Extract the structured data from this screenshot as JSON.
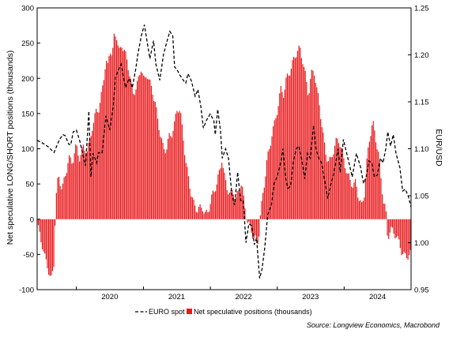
{
  "chart_data": {
    "type": "bar+line",
    "title": "",
    "source": "Source: Longview Economics, Macrobond",
    "left_axis": {
      "label": "Net speculative LONG/SHORT positions (thousands)",
      "ylim": [
        -100,
        300
      ],
      "ticks": [
        -100,
        -50,
        0,
        50,
        100,
        150,
        200,
        250,
        300
      ]
    },
    "right_axis": {
      "label": "EUR/USD",
      "ylim": [
        0.95,
        1.25
      ],
      "ticks": [
        "0.95",
        "1.00",
        "1.05",
        "1.10",
        "1.15",
        "1.20",
        "1.25"
      ]
    },
    "x_axis": {
      "xlim": [
        "2019-06-01",
        "2024-12-31"
      ],
      "year_labels": [
        "2020",
        "2021",
        "2022",
        "2023",
        "2024"
      ]
    },
    "grid": false,
    "legend_position": "bottom",
    "colors": {
      "bars": "#e8191c",
      "line": "#000000"
    },
    "series": [
      {
        "name": "EURO spot",
        "kind": "line",
        "axis": "right",
        "style": "dashed",
        "points": [
          [
            "2019-06-01",
            1.109
          ],
          [
            "2019-07-01",
            1.106
          ],
          [
            "2019-08-01",
            1.102
          ],
          [
            "2019-09-01",
            1.096
          ],
          [
            "2019-10-01",
            1.11
          ],
          [
            "2019-10-20",
            1.115
          ],
          [
            "2019-11-01",
            1.114
          ],
          [
            "2019-11-20",
            1.105
          ],
          [
            "2019-12-01",
            1.104
          ],
          [
            "2019-12-15",
            1.118
          ],
          [
            "2020-01-01",
            1.12
          ],
          [
            "2020-01-20",
            1.108
          ],
          [
            "2020-02-10",
            1.09
          ],
          [
            "2020-02-20",
            1.082
          ],
          [
            "2020-03-09",
            1.14
          ],
          [
            "2020-03-20",
            1.07
          ],
          [
            "2020-04-01",
            1.095
          ],
          [
            "2020-04-20",
            1.085
          ],
          [
            "2020-05-01",
            1.096
          ],
          [
            "2020-05-20",
            1.095
          ],
          [
            "2020-06-10",
            1.135
          ],
          [
            "2020-07-01",
            1.12
          ],
          [
            "2020-07-20",
            1.145
          ],
          [
            "2020-08-01",
            1.176
          ],
          [
            "2020-08-20",
            1.185
          ],
          [
            "2020-09-01",
            1.19
          ],
          [
            "2020-09-25",
            1.165
          ],
          [
            "2020-10-15",
            1.175
          ],
          [
            "2020-11-01",
            1.165
          ],
          [
            "2020-11-20",
            1.185
          ],
          [
            "2020-12-01",
            1.2
          ],
          [
            "2020-12-20",
            1.22
          ],
          [
            "2021-01-06",
            1.232
          ],
          [
            "2021-01-20",
            1.215
          ],
          [
            "2021-02-05",
            1.196
          ],
          [
            "2021-02-25",
            1.215
          ],
          [
            "2021-03-10",
            1.19
          ],
          [
            "2021-03-31",
            1.173
          ],
          [
            "2021-04-20",
            1.2
          ],
          [
            "2021-05-10",
            1.215
          ],
          [
            "2021-05-25",
            1.225
          ],
          [
            "2021-06-10",
            1.22
          ],
          [
            "2021-06-20",
            1.187
          ],
          [
            "2021-07-01",
            1.185
          ],
          [
            "2021-07-20",
            1.178
          ],
          [
            "2021-08-10",
            1.172
          ],
          [
            "2021-08-20",
            1.17
          ],
          [
            "2021-09-01",
            1.18
          ],
          [
            "2021-09-20",
            1.172
          ],
          [
            "2021-10-10",
            1.156
          ],
          [
            "2021-10-25",
            1.163
          ],
          [
            "2021-11-10",
            1.145
          ],
          [
            "2021-11-24",
            1.122
          ],
          [
            "2021-12-10",
            1.13
          ],
          [
            "2021-12-31",
            1.137
          ],
          [
            "2022-01-20",
            1.13
          ],
          [
            "2022-01-28",
            1.115
          ],
          [
            "2022-02-10",
            1.142
          ],
          [
            "2022-02-25",
            1.12
          ],
          [
            "2022-03-07",
            1.09
          ],
          [
            "2022-03-25",
            1.1
          ],
          [
            "2022-04-10",
            1.09
          ],
          [
            "2022-04-28",
            1.052
          ],
          [
            "2022-05-13",
            1.04
          ],
          [
            "2022-05-30",
            1.075
          ],
          [
            "2022-06-15",
            1.045
          ],
          [
            "2022-06-30",
            1.045
          ],
          [
            "2022-07-14",
            1.0
          ],
          [
            "2022-07-30",
            1.02
          ],
          [
            "2022-08-15",
            1.018
          ],
          [
            "2022-08-29",
            0.998
          ],
          [
            "2022-09-10",
            1.005
          ],
          [
            "2022-09-27",
            0.962
          ],
          [
            "2022-10-10",
            0.972
          ],
          [
            "2022-10-25",
            0.995
          ],
          [
            "2022-11-10",
            1.03
          ],
          [
            "2022-11-30",
            1.04
          ],
          [
            "2022-12-15",
            1.063
          ],
          [
            "2022-12-31",
            1.07
          ],
          [
            "2023-01-20",
            1.085
          ],
          [
            "2023-02-01",
            1.1
          ],
          [
            "2023-02-15",
            1.07
          ],
          [
            "2023-02-28",
            1.058
          ],
          [
            "2023-03-15",
            1.06
          ],
          [
            "2023-03-31",
            1.088
          ],
          [
            "2023-04-15",
            1.1
          ],
          [
            "2023-04-28",
            1.103
          ],
          [
            "2023-05-15",
            1.088
          ],
          [
            "2023-05-31",
            1.068
          ],
          [
            "2023-06-15",
            1.095
          ],
          [
            "2023-06-30",
            1.09
          ],
          [
            "2023-07-18",
            1.125
          ],
          [
            "2023-07-31",
            1.1
          ],
          [
            "2023-08-15",
            1.09
          ],
          [
            "2023-08-31",
            1.085
          ],
          [
            "2023-09-15",
            1.068
          ],
          [
            "2023-10-03",
            1.047
          ],
          [
            "2023-10-20",
            1.062
          ],
          [
            "2023-11-05",
            1.073
          ],
          [
            "2023-11-29",
            1.1
          ],
          [
            "2023-12-10",
            1.075
          ],
          [
            "2023-12-28",
            1.11
          ],
          [
            "2024-01-15",
            1.095
          ],
          [
            "2024-01-31",
            1.082
          ],
          [
            "2024-02-14",
            1.07
          ],
          [
            "2024-03-08",
            1.095
          ],
          [
            "2024-03-31",
            1.08
          ],
          [
            "2024-04-16",
            1.063
          ],
          [
            "2024-04-30",
            1.07
          ],
          [
            "2024-05-15",
            1.087
          ],
          [
            "2024-05-31",
            1.085
          ],
          [
            "2024-06-14",
            1.07
          ],
          [
            "2024-06-30",
            1.072
          ],
          [
            "2024-07-17",
            1.09
          ],
          [
            "2024-07-31",
            1.085
          ],
          [
            "2024-08-15",
            1.1
          ],
          [
            "2024-08-26",
            1.118
          ],
          [
            "2024-09-10",
            1.103
          ],
          [
            "2024-09-25",
            1.115
          ],
          [
            "2024-10-10",
            1.095
          ],
          [
            "2024-10-31",
            1.08
          ],
          [
            "2024-11-15",
            1.055
          ],
          [
            "2024-11-29",
            1.057
          ],
          [
            "2024-12-15",
            1.05
          ],
          [
            "2024-12-31",
            1.038
          ]
        ]
      },
      {
        "name": "Net speculative positions (thousands)",
        "kind": "bar",
        "axis": "left",
        "anchors": [
          [
            "2019-06-01",
            -8
          ],
          [
            "2019-06-20",
            -30
          ],
          [
            "2019-07-10",
            -55
          ],
          [
            "2019-07-25",
            -60
          ],
          [
            "2019-08-15",
            -85
          ],
          [
            "2019-09-01",
            -60
          ],
          [
            "2019-09-10",
            20
          ],
          [
            "2019-09-25",
            60
          ],
          [
            "2019-10-15",
            40
          ],
          [
            "2019-11-01",
            65
          ],
          [
            "2019-11-20",
            90
          ],
          [
            "2019-12-10",
            80
          ],
          [
            "2020-01-01",
            100
          ],
          [
            "2020-01-20",
            85
          ],
          [
            "2020-02-10",
            110
          ],
          [
            "2020-03-01",
            95
          ],
          [
            "2020-03-20",
            120
          ],
          [
            "2020-04-05",
            130
          ],
          [
            "2020-04-20",
            160
          ],
          [
            "2020-05-05",
            155
          ],
          [
            "2020-05-25",
            200
          ],
          [
            "2020-06-10",
            220
          ],
          [
            "2020-06-20",
            215
          ],
          [
            "2020-07-01",
            240
          ],
          [
            "2020-07-15",
            225
          ],
          [
            "2020-07-25",
            260
          ],
          [
            "2020-08-05",
            268
          ],
          [
            "2020-08-20",
            240
          ],
          [
            "2020-09-05",
            250
          ],
          [
            "2020-09-20",
            235
          ],
          [
            "2020-10-05",
            220
          ],
          [
            "2020-10-20",
            200
          ],
          [
            "2020-11-05",
            180
          ],
          [
            "2020-11-20",
            190
          ],
          [
            "2020-12-05",
            200
          ],
          [
            "2020-12-20",
            215
          ],
          [
            "2021-01-05",
            190
          ],
          [
            "2021-01-20",
            205
          ],
          [
            "2021-02-05",
            195
          ],
          [
            "2021-02-20",
            185
          ],
          [
            "2021-03-05",
            170
          ],
          [
            "2021-03-20",
            140
          ],
          [
            "2021-04-05",
            115
          ],
          [
            "2021-04-20",
            95
          ],
          [
            "2021-05-05",
            100
          ],
          [
            "2021-05-20",
            120
          ],
          [
            "2021-06-05",
            125
          ],
          [
            "2021-06-20",
            135
          ],
          [
            "2021-07-05",
            155
          ],
          [
            "2021-07-20",
            150
          ],
          [
            "2021-08-05",
            120
          ],
          [
            "2021-08-20",
            85
          ],
          [
            "2021-09-05",
            60
          ],
          [
            "2021-09-20",
            35
          ],
          [
            "2021-10-05",
            15
          ],
          [
            "2021-10-20",
            10
          ],
          [
            "2021-11-05",
            15
          ],
          [
            "2021-11-20",
            20
          ],
          [
            "2021-12-05",
            10
          ],
          [
            "2021-12-20",
            12
          ],
          [
            "2022-01-05",
            25
          ],
          [
            "2022-01-20",
            35
          ],
          [
            "2022-02-05",
            50
          ],
          [
            "2022-02-20",
            70
          ],
          [
            "2022-03-05",
            90
          ],
          [
            "2022-03-20",
            60
          ],
          [
            "2022-04-05",
            40
          ],
          [
            "2022-04-20",
            30
          ],
          [
            "2022-05-05",
            40
          ],
          [
            "2022-05-20",
            30
          ],
          [
            "2022-06-05",
            45
          ],
          [
            "2022-06-20",
            55
          ],
          [
            "2022-07-05",
            20
          ],
          [
            "2022-07-20",
            -5
          ],
          [
            "2022-08-05",
            -15
          ],
          [
            "2022-08-20",
            -20
          ],
          [
            "2022-09-05",
            -25
          ],
          [
            "2022-09-20",
            -30
          ],
          [
            "2022-10-01",
            5
          ],
          [
            "2022-10-20",
            40
          ],
          [
            "2022-11-05",
            80
          ],
          [
            "2022-11-20",
            100
          ],
          [
            "2022-12-05",
            130
          ],
          [
            "2022-12-20",
            140
          ],
          [
            "2023-01-05",
            160
          ],
          [
            "2023-01-20",
            180
          ],
          [
            "2023-02-05",
            175
          ],
          [
            "2023-02-20",
            200
          ],
          [
            "2023-03-05",
            210
          ],
          [
            "2023-03-20",
            220
          ],
          [
            "2023-04-05",
            230
          ],
          [
            "2023-04-20",
            235
          ],
          [
            "2023-05-05",
            238
          ],
          [
            "2023-05-20",
            225
          ],
          [
            "2023-06-05",
            205
          ],
          [
            "2023-06-20",
            180
          ],
          [
            "2023-07-05",
            205
          ],
          [
            "2023-07-20",
            210
          ],
          [
            "2023-08-05",
            180
          ],
          [
            "2023-08-20",
            160
          ],
          [
            "2023-09-05",
            130
          ],
          [
            "2023-09-20",
            100
          ],
          [
            "2023-10-05",
            85
          ],
          [
            "2023-10-20",
            80
          ],
          [
            "2023-11-05",
            95
          ],
          [
            "2023-11-20",
            110
          ],
          [
            "2023-12-05",
            115
          ],
          [
            "2023-12-20",
            100
          ],
          [
            "2024-01-05",
            80
          ],
          [
            "2024-01-20",
            60
          ],
          [
            "2024-02-05",
            50
          ],
          [
            "2024-02-20",
            45
          ],
          [
            "2024-03-05",
            55
          ],
          [
            "2024-03-20",
            35
          ],
          [
            "2024-04-05",
            20
          ],
          [
            "2024-04-20",
            35
          ],
          [
            "2024-05-05",
            80
          ],
          [
            "2024-05-20",
            115
          ],
          [
            "2024-06-05",
            140
          ],
          [
            "2024-06-20",
            120
          ],
          [
            "2024-07-05",
            100
          ],
          [
            "2024-07-20",
            55
          ],
          [
            "2024-08-01",
            25
          ],
          [
            "2024-08-15",
            10
          ],
          [
            "2024-08-25",
            -30
          ],
          [
            "2024-09-10",
            -10
          ],
          [
            "2024-09-25",
            -15
          ],
          [
            "2024-10-10",
            -20
          ],
          [
            "2024-10-25",
            -35
          ],
          [
            "2024-11-10",
            -50
          ],
          [
            "2024-11-25",
            -55
          ],
          [
            "2024-12-10",
            -50
          ],
          [
            "2024-12-31",
            -45
          ]
        ]
      }
    ]
  }
}
